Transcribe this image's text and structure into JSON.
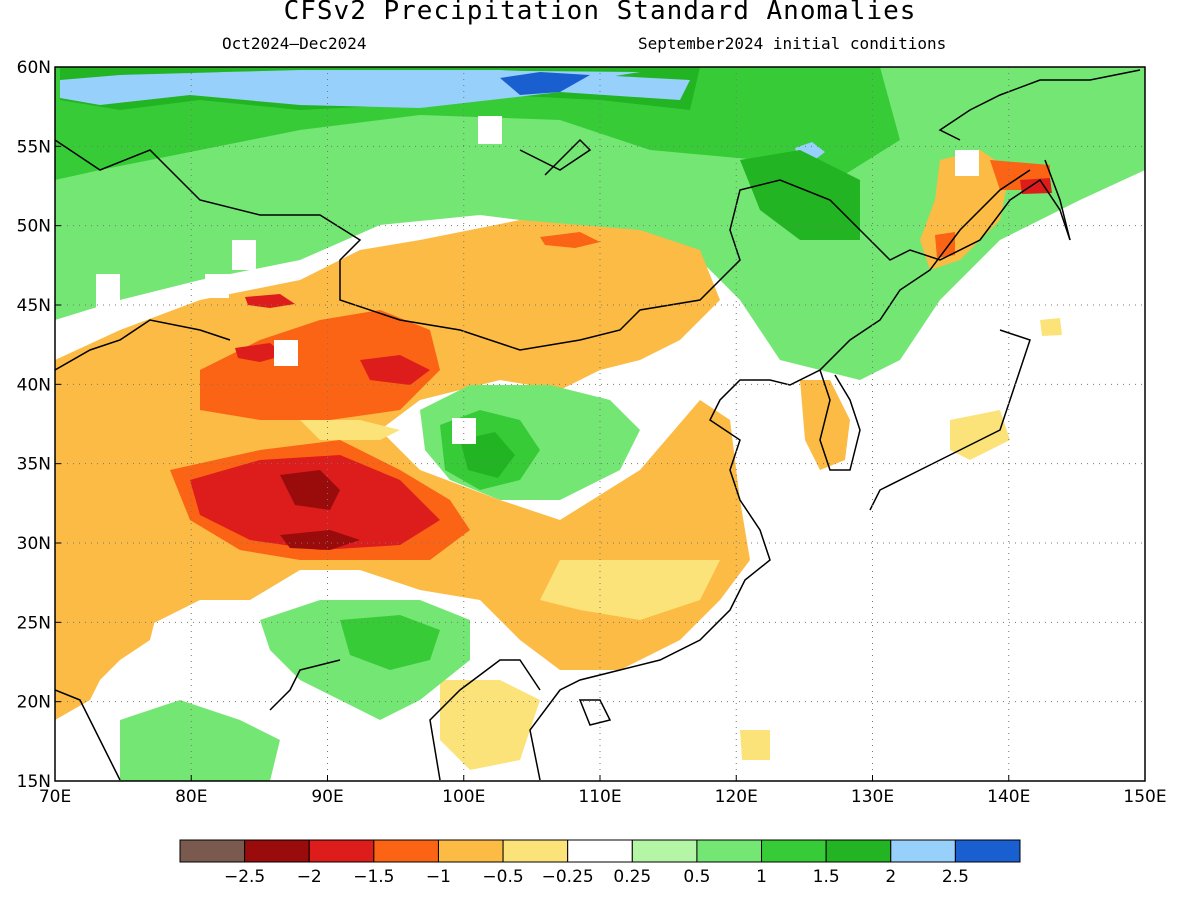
{
  "title": "CFSv2 Precipitation Standard Anomalies",
  "period": "Oct2024–Dec2024",
  "init": "September2024 initial conditions",
  "map": {
    "lon_range": [
      70,
      150
    ],
    "lat_range": [
      15,
      60
    ],
    "lon_ticks": [
      "70E",
      "80E",
      "90E",
      "100E",
      "110E",
      "120E",
      "130E",
      "140E",
      "150E"
    ],
    "lat_ticks": [
      "15N",
      "20N",
      "25N",
      "30N",
      "35N",
      "40N",
      "45N",
      "50N",
      "55N",
      "60N"
    ],
    "grid": "dotted"
  },
  "colorbar": {
    "colors": [
      "#7a5a4e",
      "#9a0c0c",
      "#dd1c1c",
      "#fa6414",
      "#fbbb44",
      "#fbe37a",
      "#ffffff",
      "#b4f5a6",
      "#74e674",
      "#37cc37",
      "#22b422",
      "#97d0fa",
      "#1a5fd0"
    ],
    "labels": [
      "−2.5",
      "−2",
      "−1.5",
      "−1",
      "−0.5",
      "−0.25",
      "0.25",
      "0.5",
      "1",
      "1.5",
      "2",
      "2.5"
    ]
  }
}
